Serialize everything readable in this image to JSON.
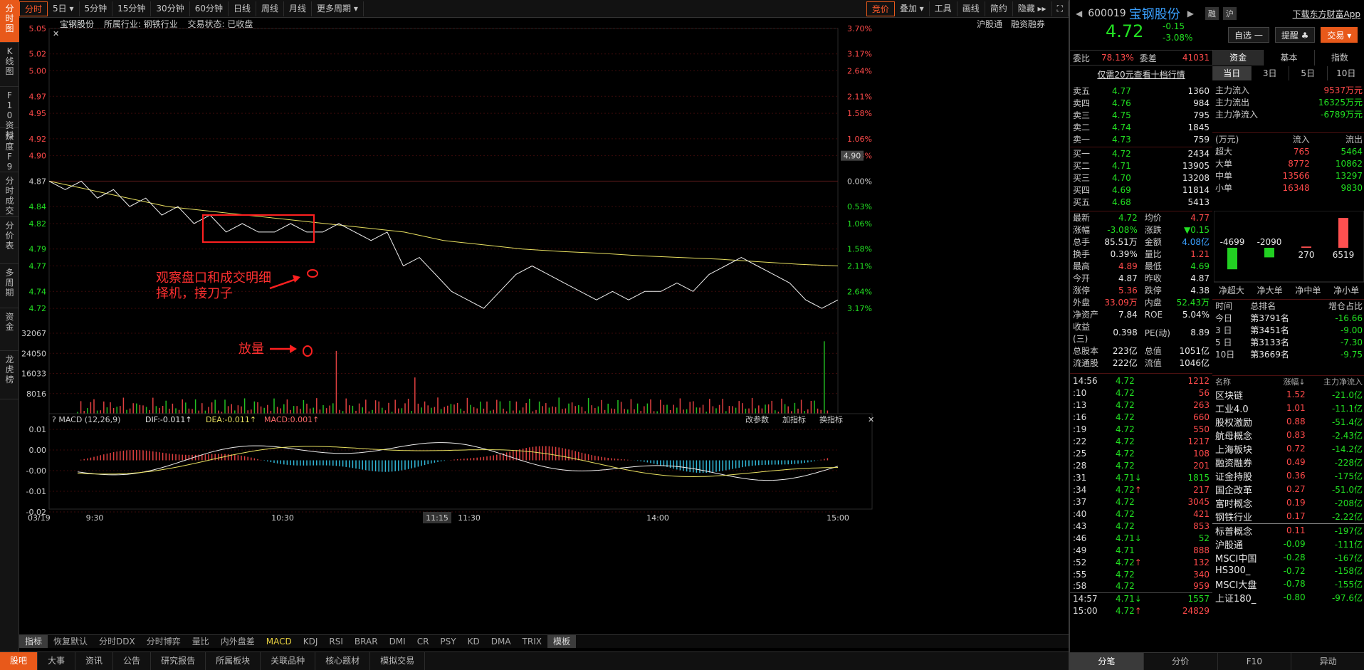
{
  "vnav": [
    "分时图",
    "K线图",
    "F10资料",
    "深度F9",
    "分时成交",
    "分价表",
    "多周期",
    "资金",
    "龙虎榜"
  ],
  "topbar": {
    "tabs": [
      "分时",
      "5日",
      "5分钟",
      "15分钟",
      "30分钟",
      "60分钟",
      "日线",
      "周线",
      "月线",
      "更多周期"
    ],
    "right": [
      "竞价",
      "叠加",
      "工具",
      "画线",
      "简约",
      "隐藏"
    ]
  },
  "info": {
    "name": "宝钢股份",
    "industry": "所属行业: 钢铁行业",
    "status": "交易状态: 已收盘",
    "right1": "沪股通",
    "right2": "融资融券"
  },
  "chart_data": {
    "type": "line",
    "title": "宝钢股份",
    "price_axis": {
      "left": [
        "5.05",
        "5.02",
        "5.00",
        "4.97",
        "4.95",
        "4.92",
        "4.90",
        "4.87",
        "4.84",
        "4.82",
        "4.79",
        "4.77",
        "4.74",
        "4.72"
      ],
      "right": [
        "3.70%",
        "3.17%",
        "2.64%",
        "2.11%",
        "1.58%",
        "1.06%",
        "0.53%",
        "0.00%",
        "0.53%",
        "1.06%",
        "1.58%",
        "2.11%",
        "2.64%",
        "3.17%"
      ],
      "ylim": [
        4.71,
        5.05
      ],
      "prev_close": 4.87
    },
    "volume_axis": [
      "32067",
      "24050",
      "16033",
      "8016"
    ],
    "macd_axis": [
      "0.01",
      "0.00",
      "-0.00",
      "-0.01",
      "-0.02"
    ],
    "time_axis": [
      "03/19",
      "9:30",
      "10:30",
      "11:15",
      "11:30",
      "14:00",
      "15:00"
    ],
    "cursor_price": "4.90",
    "price_line": [
      4.87,
      4.86,
      4.87,
      4.85,
      4.86,
      4.84,
      4.85,
      4.83,
      4.84,
      4.82,
      4.83,
      4.81,
      4.82,
      4.81,
      4.81,
      4.82,
      4.81,
      4.81,
      4.82,
      4.81,
      4.8,
      4.81,
      4.77,
      4.78,
      4.76,
      4.74,
      4.73,
      4.72,
      4.74,
      4.76,
      4.77,
      4.76,
      4.75,
      4.74,
      4.73,
      4.74,
      4.73,
      4.74,
      4.74,
      4.75,
      4.74,
      4.76,
      4.77,
      4.78,
      4.77,
      4.76,
      4.75,
      4.73,
      4.72,
      4.73
    ],
    "avg_line": [
      4.87,
      4.86,
      4.85,
      4.84,
      4.835,
      4.83,
      4.825,
      4.82,
      4.815,
      4.81,
      4.8,
      4.795,
      4.79,
      4.787,
      4.785,
      4.782,
      4.78,
      4.778,
      4.775,
      4.772,
      4.77
    ],
    "macd": {
      "label": "MACD (12,26,9)",
      "dif": "DIF:-0.011↑",
      "dea": "DEA:-0.011↑",
      "macd": "MACD:0.001↑",
      "buttons": [
        "改参数",
        "加指标",
        "换指标"
      ]
    }
  },
  "annotations": {
    "a1_line1": "观察盘口和成交明细",
    "a1_line2": "择机，接刀子",
    "a2": "放量"
  },
  "bottabs1": [
    "指标",
    "恢复默认",
    "分时DDX",
    "分时博弈",
    "量比",
    "内外盘差",
    "MACD",
    "KDJ",
    "RSI",
    "BRAR",
    "DMI",
    "CR",
    "PSY",
    "KD",
    "DMA",
    "TRIX",
    "模板"
  ],
  "bottabs2": [
    "股吧",
    "大事",
    "资讯",
    "公告",
    "研究报告",
    "所属板块",
    "关联品种",
    "核心题材",
    "模拟交易"
  ],
  "quote": {
    "code": "600019",
    "name": "宝钢股份",
    "tags": [
      "融",
      "沪"
    ],
    "download": "下载东方财富App",
    "price": "4.72",
    "chg": "-0.15",
    "pct": "-3.08%",
    "btns": [
      "自选",
      "提醒",
      "交易"
    ]
  },
  "ratio": {
    "wb_label": "委比",
    "wb": "78.13%",
    "wc_label": "委差",
    "wc": "41031",
    "notice": "仅需20元查看十档行情"
  },
  "sells": [
    [
      "卖五",
      "4.77",
      "1360"
    ],
    [
      "卖四",
      "4.76",
      "984"
    ],
    [
      "卖三",
      "4.75",
      "795"
    ],
    [
      "卖二",
      "4.74",
      "1845"
    ],
    [
      "卖一",
      "4.73",
      "759"
    ]
  ],
  "buys": [
    [
      "买一",
      "4.72",
      "2434"
    ],
    [
      "买二",
      "4.71",
      "13905"
    ],
    [
      "买三",
      "4.70",
      "13208"
    ],
    [
      "买四",
      "4.69",
      "11814"
    ],
    [
      "买五",
      "4.68",
      "5413"
    ]
  ],
  "stats": [
    [
      "最新",
      "4.72",
      "均价",
      "4.77"
    ],
    [
      "涨幅",
      "-3.08%",
      "涨跌",
      "▼0.15"
    ],
    [
      "总手",
      "85.51万",
      "金额",
      "4.08亿"
    ],
    [
      "换手",
      "0.39%",
      "量比",
      "1.21"
    ],
    [
      "最高",
      "4.89",
      "最低",
      "4.69"
    ],
    [
      "今开",
      "4.87",
      "昨收",
      "4.87"
    ],
    [
      "涨停",
      "5.36",
      "跌停",
      "4.38"
    ],
    [
      "外盘",
      "33.09万",
      "内盘",
      "52.43万"
    ],
    [
      "净资产",
      "7.84",
      "ROE",
      "5.04%"
    ],
    [
      "收益(三)",
      "0.398",
      "PE(动)",
      "8.89"
    ],
    [
      "总股本",
      "223亿",
      "总值",
      "1051亿"
    ],
    [
      "流通股",
      "222亿",
      "流值",
      "1046亿"
    ]
  ],
  "trades": [
    [
      "14:56",
      "4.72",
      "1212"
    ],
    [
      ":10",
      "4.72",
      "56"
    ],
    [
      ":13",
      "4.72",
      "263"
    ],
    [
      ":16",
      "4.72",
      "660"
    ],
    [
      ":19",
      "4.72",
      "550"
    ],
    [
      ":22",
      "4.72",
      "1217"
    ],
    [
      ":25",
      "4.72",
      "108"
    ],
    [
      ":28",
      "4.72",
      "201"
    ],
    [
      ":31",
      "4.71↓",
      "1815"
    ],
    [
      ":34",
      "4.72↑",
      "217"
    ],
    [
      ":37",
      "4.72",
      "3045"
    ],
    [
      ":40",
      "4.72",
      "421"
    ],
    [
      ":43",
      "4.72",
      "853"
    ],
    [
      ":46",
      "4.71↓",
      "52"
    ],
    [
      ":49",
      "4.71",
      "888"
    ],
    [
      ":52",
      "4.72↑",
      "132"
    ],
    [
      ":55",
      "4.72",
      "340"
    ],
    [
      ":58",
      "4.72",
      "959"
    ],
    [
      "14:57",
      "4.71↓",
      "1557"
    ],
    [
      "15:00",
      "4.72↑",
      "24829"
    ]
  ],
  "fund": {
    "tabs": [
      "资金",
      "基本",
      "指数"
    ],
    "periods": [
      "当日",
      "3日",
      "5日",
      "10日"
    ],
    "flows": [
      [
        "主力流入",
        "9537万元"
      ],
      [
        "主力流出",
        "16325万元"
      ],
      [
        "主力净流入",
        "-6789万元"
      ]
    ],
    "head": [
      "(万元)",
      "流入",
      "流出"
    ],
    "rows": [
      [
        "超大",
        "765",
        "5464"
      ],
      [
        "大单",
        "8772",
        "10862"
      ],
      [
        "中单",
        "13566",
        "13297"
      ],
      [
        "小单",
        "16348",
        "9830"
      ]
    ],
    "bars": [
      {
        "label": "-4699",
        "v": -4699
      },
      {
        "label": "-2090",
        "v": -2090
      },
      {
        "label": "270",
        "v": 270
      },
      {
        "label": "6519",
        "v": 6519
      }
    ],
    "bar_names": [
      "净超大",
      "净大单",
      "净中单",
      "净小单"
    ],
    "rank_head": [
      "时间",
      "总排名",
      "增仓占比"
    ],
    "ranks": [
      [
        "今日",
        "第3791名",
        "-16.66"
      ],
      [
        "3 日",
        "第3451名",
        "-9.00"
      ],
      [
        "5 日",
        "第3133名",
        "-7.30"
      ],
      [
        "10日",
        "第3669名",
        "-9.75"
      ]
    ],
    "sector_head": [
      "名称",
      "涨幅↓",
      "主力净流入"
    ],
    "sectors": [
      [
        "区块链",
        "1.52",
        "-21.0亿"
      ],
      [
        "工业4.0",
        "1.01",
        "-11.1亿"
      ],
      [
        "股权激励",
        "0.88",
        "-51.4亿"
      ],
      [
        "航母概念",
        "0.83",
        "-2.43亿"
      ],
      [
        "上海板块",
        "0.72",
        "-14.2亿"
      ],
      [
        "融资融券",
        "0.49",
        "-228亿"
      ],
      [
        "证金持股",
        "0.36",
        "-175亿"
      ],
      [
        "国企改革",
        "0.27",
        "-51.0亿"
      ],
      [
        "富时概念",
        "0.19",
        "-208亿"
      ],
      [
        "钢铁行业",
        "0.17",
        "-2.22亿"
      ],
      [
        "标普概念",
        "0.11",
        "-197亿"
      ],
      [
        "沪股通",
        "-0.09",
        "-111亿"
      ],
      [
        "MSCI中国",
        "-0.28",
        "-167亿"
      ],
      [
        "HS300_",
        "-0.72",
        "-158亿"
      ],
      [
        "MSCI大盘",
        "-0.78",
        "-155亿"
      ],
      [
        "上证180_",
        "-0.80",
        "-97.6亿"
      ]
    ],
    "bottom_tabs": [
      "分笔",
      "分价",
      "F10",
      "异动"
    ]
  }
}
